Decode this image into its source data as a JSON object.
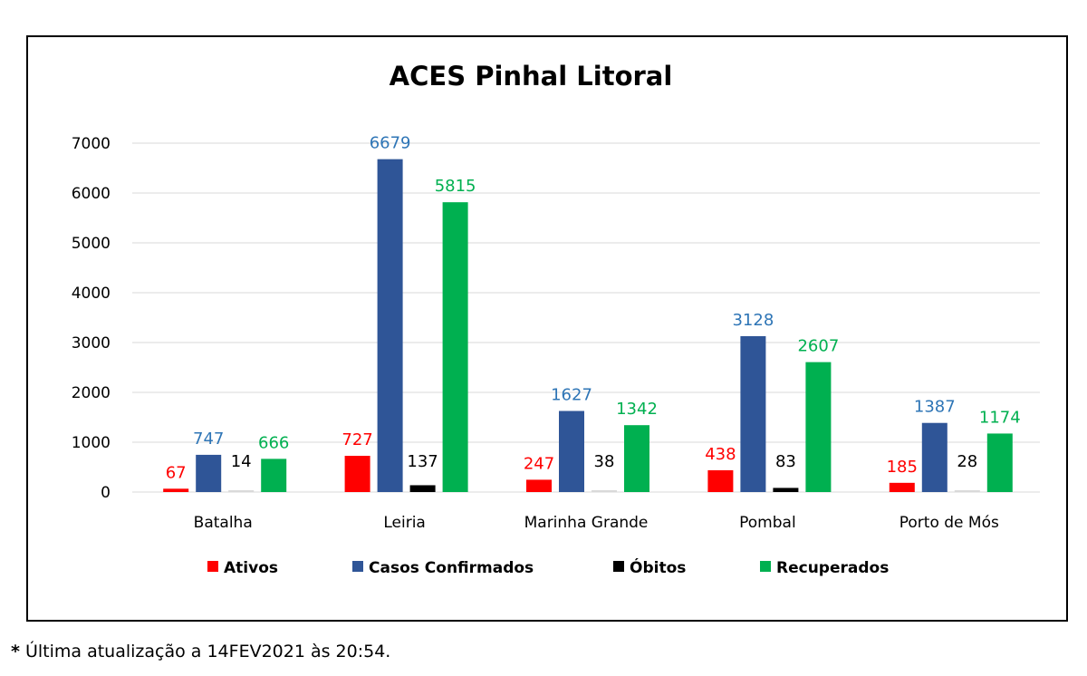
{
  "chart_data": {
    "type": "bar",
    "title": "ACES Pinhal Litoral",
    "categories": [
      "Batalha",
      "Leiria",
      "Marinha Grande",
      "Pombal",
      "Porto de Mós"
    ],
    "series": [
      {
        "name": "Ativos",
        "color": "#ff0000",
        "values": [
          67,
          727,
          247,
          438,
          185
        ]
      },
      {
        "name": "Casos Confirmados",
        "color": "#2f5597",
        "label_color": "#2e75b6",
        "values": [
          747,
          6679,
          1627,
          3128,
          1387
        ]
      },
      {
        "name": "Óbitos",
        "color": "#000000",
        "values": [
          14,
          137,
          38,
          83,
          28
        ]
      },
      {
        "name": "Recuperados",
        "color": "#00b050",
        "values": [
          666,
          5815,
          1342,
          2607,
          1174
        ]
      }
    ],
    "ylim": [
      0,
      7000
    ],
    "yticks": [
      0,
      1000,
      2000,
      3000,
      4000,
      5000,
      6000,
      7000
    ],
    "grid": true,
    "legend_position": "bottom"
  },
  "footnote": {
    "star": "*",
    "text": " Última atualização a 14FEV2021 às 20:54."
  }
}
